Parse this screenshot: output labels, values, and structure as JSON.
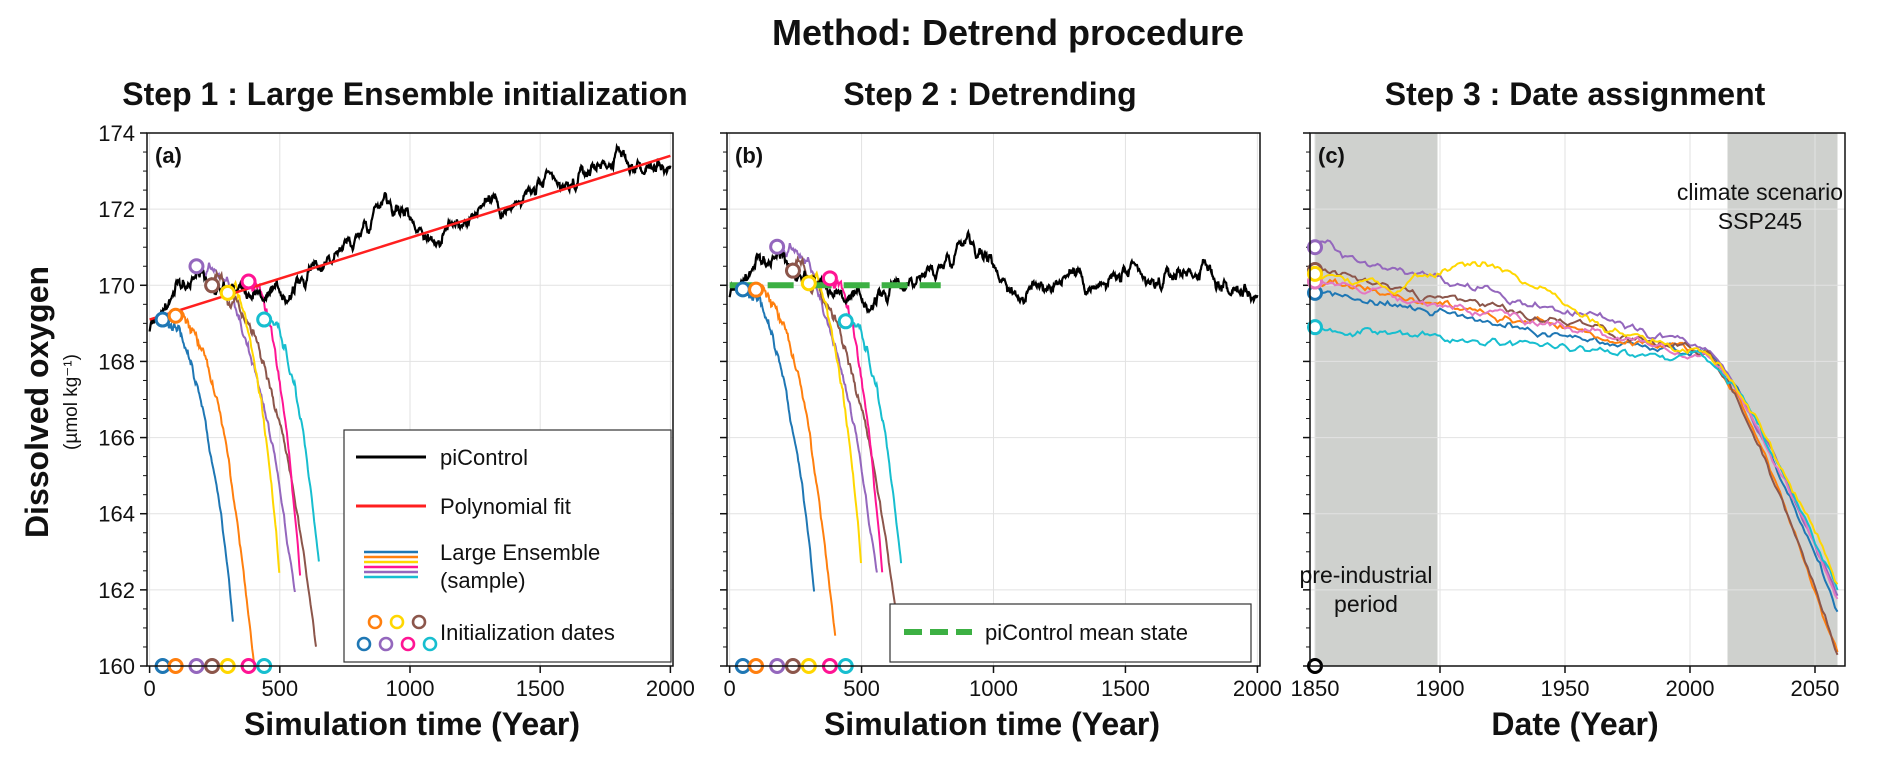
{
  "figure_title": "Method: Detrend procedure",
  "y_axis": {
    "label": "Dissolved oxygen",
    "units": "(µmol kg⁻¹)",
    "range": [
      160,
      174
    ],
    "ticks": [
      "160",
      "162",
      "164",
      "166",
      "168",
      "170",
      "172",
      "174"
    ]
  },
  "colors": {
    "picontrol": "#000000",
    "fit": "#ff1f1f",
    "mean": "#3cb043",
    "shade": "#cfd1ce",
    "members": [
      "#1f77b4",
      "#ff7f0e",
      "#9467bd",
      "#8c564b",
      "#e377c2",
      "#17becf",
      "#ffd700",
      "#ff1493"
    ]
  },
  "panels": [
    {
      "id": "a",
      "tag": "(a)",
      "title": "Step 1 : Large Ensemble initialization",
      "xlabel": "Simulation time (Year)",
      "xlim": [
        -10,
        2010
      ],
      "xticks": [
        "0",
        "500",
        "1000",
        "1500",
        "2000"
      ]
    },
    {
      "id": "b",
      "tag": "(b)",
      "title": "Step 2 : Detrending",
      "xlabel": "Simulation time (Year)",
      "xlim": [
        -10,
        2010
      ],
      "xticks": [
        "0",
        "500",
        "1000",
        "1500",
        "2000"
      ]
    },
    {
      "id": "c",
      "tag": "(c)",
      "title": "Step 3 : Date assignment",
      "xlabel": "Date (Year)",
      "xlim": [
        1848,
        2062
      ],
      "xticks": [
        "1850",
        "1900",
        "1950",
        "2000",
        "2050"
      ],
      "annotations": {
        "preindustrial": [
          "pre-industrial",
          "period"
        ],
        "scenario": [
          "climate scenario",
          "SSP245"
        ]
      }
    }
  ],
  "legend_a": {
    "picontrol": "piControl",
    "fit": "Polynomial fit",
    "ensemble": [
      "Large Ensemble",
      "(sample)"
    ],
    "init": "Initialization dates"
  },
  "legend_b": {
    "mean": "piControl mean state"
  },
  "chart_data": {
    "type": "line",
    "picontrol_fit": {
      "x": [
        0,
        2000
      ],
      "y": [
        169.1,
        173.4
      ]
    },
    "picontrol_approx": {
      "x": [
        0,
        100,
        200,
        300,
        400,
        500,
        600,
        700,
        800,
        900,
        1000,
        1100,
        1200,
        1300,
        1400,
        1500,
        1600,
        1700,
        1800,
        1900,
        2000
      ],
      "y": [
        168.9,
        169.8,
        170.3,
        170.1,
        169.9,
        169.6,
        170.2,
        170.8,
        171.3,
        172.5,
        171.8,
        171.2,
        171.7,
        172.3,
        172.0,
        172.6,
        172.4,
        173.1,
        173.4,
        173.0,
        173.2
      ]
    },
    "mean_state": {
      "x": [
        0,
        800
      ],
      "y": [
        170.0,
        170.0
      ]
    },
    "init_dates": [
      50,
      100,
      180,
      240,
      300,
      380,
      440
    ],
    "members": [
      {
        "start": 50,
        "len": 270,
        "y0": 169.1,
        "end": 161.2
      },
      {
        "start": 100,
        "len": 300,
        "y0": 169.2,
        "end": 160.1
      },
      {
        "start": 180,
        "len": 380,
        "y0": 170.5,
        "end": 161.8
      },
      {
        "start": 240,
        "len": 400,
        "y0": 170.0,
        "end": 160.6
      },
      {
        "start": 300,
        "len": 200,
        "y0": 169.8,
        "end": 162.3
      },
      {
        "start": 380,
        "len": 200,
        "y0": 170.1,
        "end": 162.2
      },
      {
        "start": 440,
        "len": 210,
        "y0": 169.1,
        "end": 162.8
      }
    ],
    "dated_members": {
      "x_start": 1850,
      "x_end": 2059,
      "series": [
        {
          "start": 169.8,
          "end": 161.4
        },
        {
          "start": 170.1,
          "end": 160.4
        },
        {
          "start": 171.0,
          "end": 161.7
        },
        {
          "start": 170.4,
          "end": 160.4
        },
        {
          "start": 170.1,
          "end": 161.7
        },
        {
          "start": 168.9,
          "end": 162.1
        },
        {
          "start": 170.3,
          "end": 162.2
        }
      ]
    },
    "shaded_periods": [
      [
        1850,
        1899
      ],
      [
        2015,
        2059
      ]
    ]
  }
}
